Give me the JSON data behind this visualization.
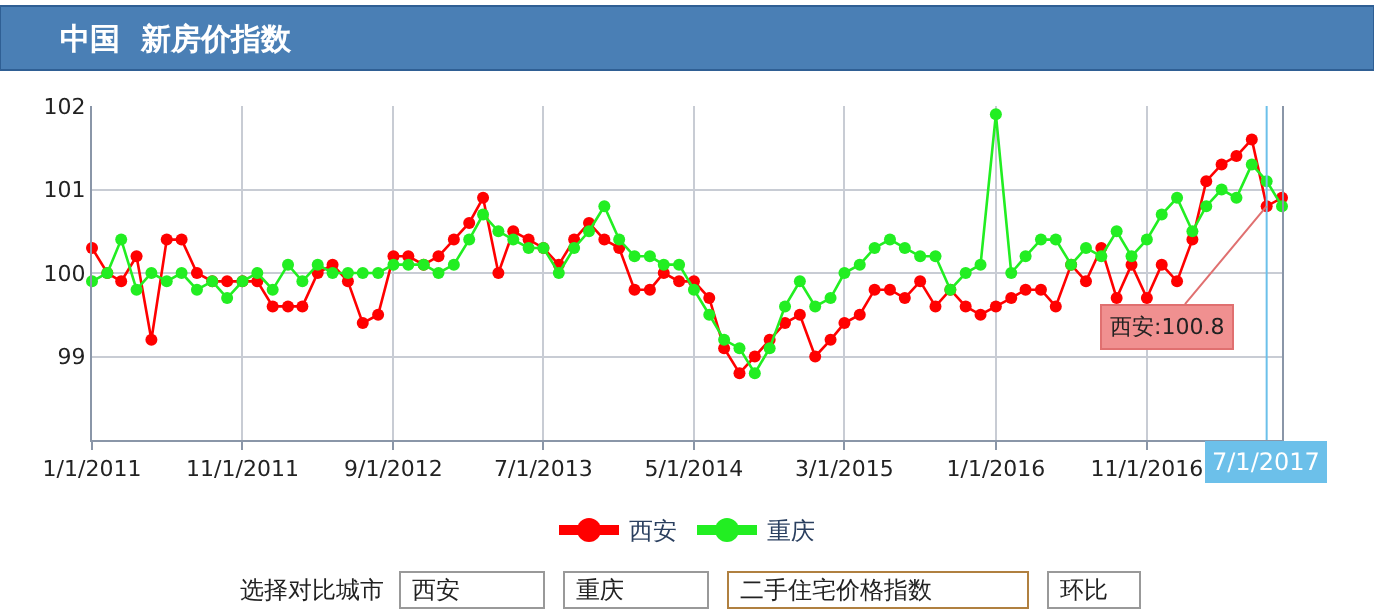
{
  "chart_data": {
    "type": "line",
    "title": "中国  新房价指数",
    "x": [
      "2011-01",
      "2011-02",
      "2011-03",
      "2011-04",
      "2011-05",
      "2011-06",
      "2011-07",
      "2011-08",
      "2011-09",
      "2011-10",
      "2011-11",
      "2011-12",
      "2012-01",
      "2012-02",
      "2012-03",
      "2012-04",
      "2012-05",
      "2012-06",
      "2012-07",
      "2012-08",
      "2012-09",
      "2012-10",
      "2012-11",
      "2012-12",
      "2013-01",
      "2013-02",
      "2013-03",
      "2013-04",
      "2013-05",
      "2013-06",
      "2013-07",
      "2013-08",
      "2013-09",
      "2013-10",
      "2013-11",
      "2013-12",
      "2014-01",
      "2014-02",
      "2014-03",
      "2014-04",
      "2014-05",
      "2014-06",
      "2014-07",
      "2014-08",
      "2014-09",
      "2014-10",
      "2014-11",
      "2014-12",
      "2015-01",
      "2015-02",
      "2015-03",
      "2015-04",
      "2015-05",
      "2015-06",
      "2015-07",
      "2015-08",
      "2015-09",
      "2015-10",
      "2015-11",
      "2015-12",
      "2016-01",
      "2016-02",
      "2016-03",
      "2016-04",
      "2016-05",
      "2016-06",
      "2016-07",
      "2016-08",
      "2016-09",
      "2016-10",
      "2016-11",
      "2016-12",
      "2017-01",
      "2017-02",
      "2017-03",
      "2017-04",
      "2017-05",
      "2017-06",
      "2017-07",
      "2017-08"
    ],
    "series": [
      {
        "name": "西安",
        "color": "#ff0000",
        "values": [
          100.3,
          100.0,
          99.9,
          100.2,
          99.2,
          100.4,
          100.4,
          100.0,
          99.9,
          99.9,
          99.9,
          99.9,
          99.6,
          99.6,
          99.6,
          100.0,
          100.1,
          99.9,
          99.4,
          99.5,
          100.2,
          100.2,
          100.1,
          100.2,
          100.4,
          100.6,
          100.9,
          100.0,
          100.5,
          100.4,
          100.3,
          100.1,
          100.4,
          100.6,
          100.4,
          100.3,
          99.8,
          99.8,
          100.0,
          99.9,
          99.9,
          99.7,
          99.1,
          98.8,
          99.0,
          99.2,
          99.4,
          99.5,
          99.0,
          99.2,
          99.4,
          99.5,
          99.8,
          99.8,
          99.7,
          99.9,
          99.6,
          99.8,
          99.6,
          99.5,
          99.6,
          99.7,
          99.8,
          99.8,
          99.6,
          100.1,
          99.9,
          100.3,
          99.7,
          100.1,
          99.7,
          100.1,
          99.9,
          100.4,
          101.1,
          101.3,
          101.4,
          101.6,
          100.8,
          100.9
        ]
      },
      {
        "name": "重庆",
        "color": "#22ee22",
        "values": [
          99.9,
          100.0,
          100.4,
          99.8,
          100.0,
          99.9,
          100.0,
          99.8,
          99.9,
          99.7,
          99.9,
          100.0,
          99.8,
          100.1,
          99.9,
          100.1,
          100.0,
          100.0,
          100.0,
          100.0,
          100.1,
          100.1,
          100.1,
          100.0,
          100.1,
          100.4,
          100.7,
          100.5,
          100.4,
          100.3,
          100.3,
          100.0,
          100.3,
          100.5,
          100.8,
          100.4,
          100.2,
          100.2,
          100.1,
          100.1,
          99.8,
          99.5,
          99.2,
          99.1,
          98.8,
          99.1,
          99.6,
          99.9,
          99.6,
          99.7,
          100.0,
          100.1,
          100.3,
          100.4,
          100.3,
          100.2,
          100.2,
          99.8,
          100.0,
          100.1,
          101.9,
          100.0,
          100.2,
          100.4,
          100.4,
          100.1,
          100.3,
          100.2,
          100.5,
          100.2,
          100.4,
          100.7,
          100.9,
          100.5,
          100.8,
          101.0,
          100.9,
          101.3,
          101.1,
          100.8
        ]
      }
    ],
    "xlim": [
      "2011-01",
      "2017-08"
    ],
    "xticks": [
      {
        "value": "2011-01",
        "label": "1/1/2011"
      },
      {
        "value": "2011-11",
        "label": "11/1/2011"
      },
      {
        "value": "2012-09",
        "label": "9/1/2012"
      },
      {
        "value": "2013-07",
        "label": "7/1/2013"
      },
      {
        "value": "2014-05",
        "label": "5/1/2014"
      },
      {
        "value": "2015-03",
        "label": "3/1/2015"
      },
      {
        "value": "2016-01",
        "label": "1/1/2016"
      },
      {
        "value": "2016-11",
        "label": "11/1/2016"
      }
    ],
    "ylim": [
      98,
      102
    ],
    "yticks": [
      {
        "value": 98,
        "label": null
      },
      99,
      100,
      101,
      102
    ],
    "grid": true,
    "legend": "bottom",
    "marker": "circle",
    "line_style": "solid",
    "ref_lines": [
      {
        "axis": "x",
        "value": "2017-07",
        "label": "7/1/2017",
        "color": "#6cc0ea"
      }
    ],
    "annotations": [
      "选择对比城市",
      "西安",
      "重庆",
      "二手住宅价格指数",
      "环比",
      {
        "text": "西安:100.8",
        "x": "2017-07",
        "y": 100.8
      }
    ]
  }
}
